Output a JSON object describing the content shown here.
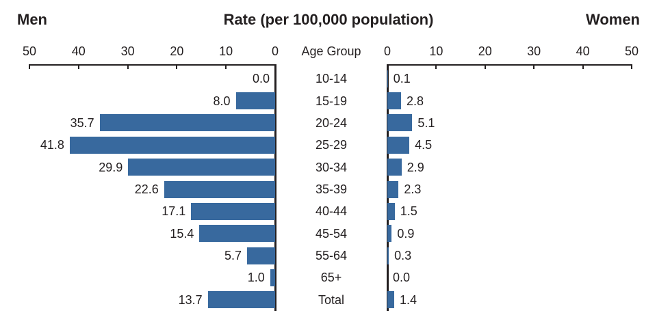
{
  "chart_data": {
    "type": "bar",
    "variant": "back-to-back horizontal bars (population-pyramid style)",
    "title": "Rate (per 100,000 population)",
    "category_axis_label": "Age Group",
    "categories": [
      "10-14",
      "15-19",
      "20-24",
      "25-29",
      "30-34",
      "35-39",
      "40-44",
      "45-54",
      "55-64",
      "65+",
      "Total"
    ],
    "series": [
      {
        "name": "Men",
        "side": "left",
        "values": [
          0.0,
          8.0,
          35.7,
          41.8,
          29.9,
          22.6,
          17.1,
          15.4,
          5.7,
          1.0,
          13.7
        ]
      },
      {
        "name": "Women",
        "side": "right",
        "values": [
          0.1,
          2.8,
          5.1,
          4.5,
          2.9,
          2.3,
          1.5,
          0.9,
          0.3,
          0.0,
          1.4
        ]
      }
    ],
    "axis_ticks": [
      0,
      10,
      20,
      30,
      40,
      50
    ],
    "axis_range": [
      0,
      50
    ],
    "value_labels": true,
    "value_label_decimals": 1,
    "grid": false,
    "legend_position": "top-corners",
    "bar_color": "#38699E",
    "text_color": "#231f20",
    "background_color": "#ffffff"
  }
}
